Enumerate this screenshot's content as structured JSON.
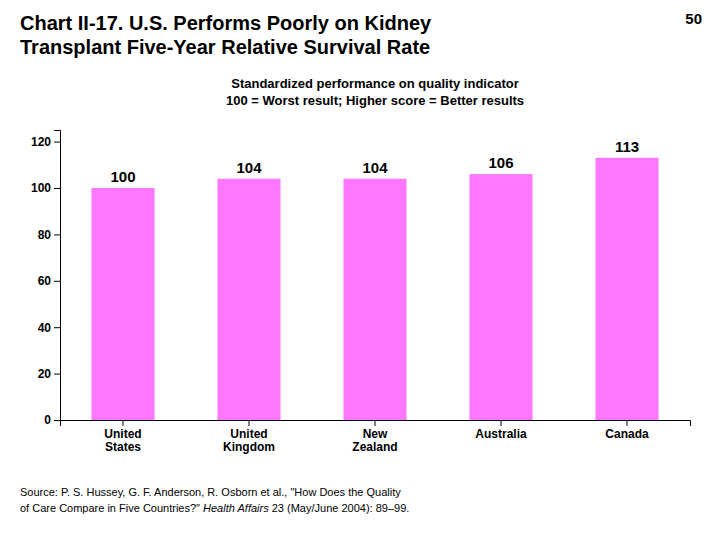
{
  "chart_data": {
    "type": "bar",
    "title": [
      "Chart II-17. U.S. Performs Poorly on Kidney",
      "Transplant Five-Year Relative Survival Rate"
    ],
    "subtitle": [
      "Standardized performance on quality indicator",
      "100 = Worst result; Higher score = Better results"
    ],
    "annotations": [
      "50"
    ],
    "source": [
      [
        "Source: P. S. Hussey, G. F. Anderson, R. Osborn et al., \"How Does the Quality"
      ],
      [
        "of Care Compare in Five Countries?\" ",
        "Health Affairs",
        " 23 (May/June 2004): 89–99."
      ]
    ],
    "categories": [
      "United\nStates",
      "United\nKingdom",
      "New\nZealand",
      "Australia",
      "Canada"
    ],
    "values": [
      100,
      104,
      104,
      106,
      113
    ],
    "color": "#FF77FF",
    "ylim": [
      0,
      125
    ],
    "yticks": [
      0,
      20,
      40,
      60,
      80,
      100,
      120
    ],
    "data_labels": true,
    "grid": false
  }
}
